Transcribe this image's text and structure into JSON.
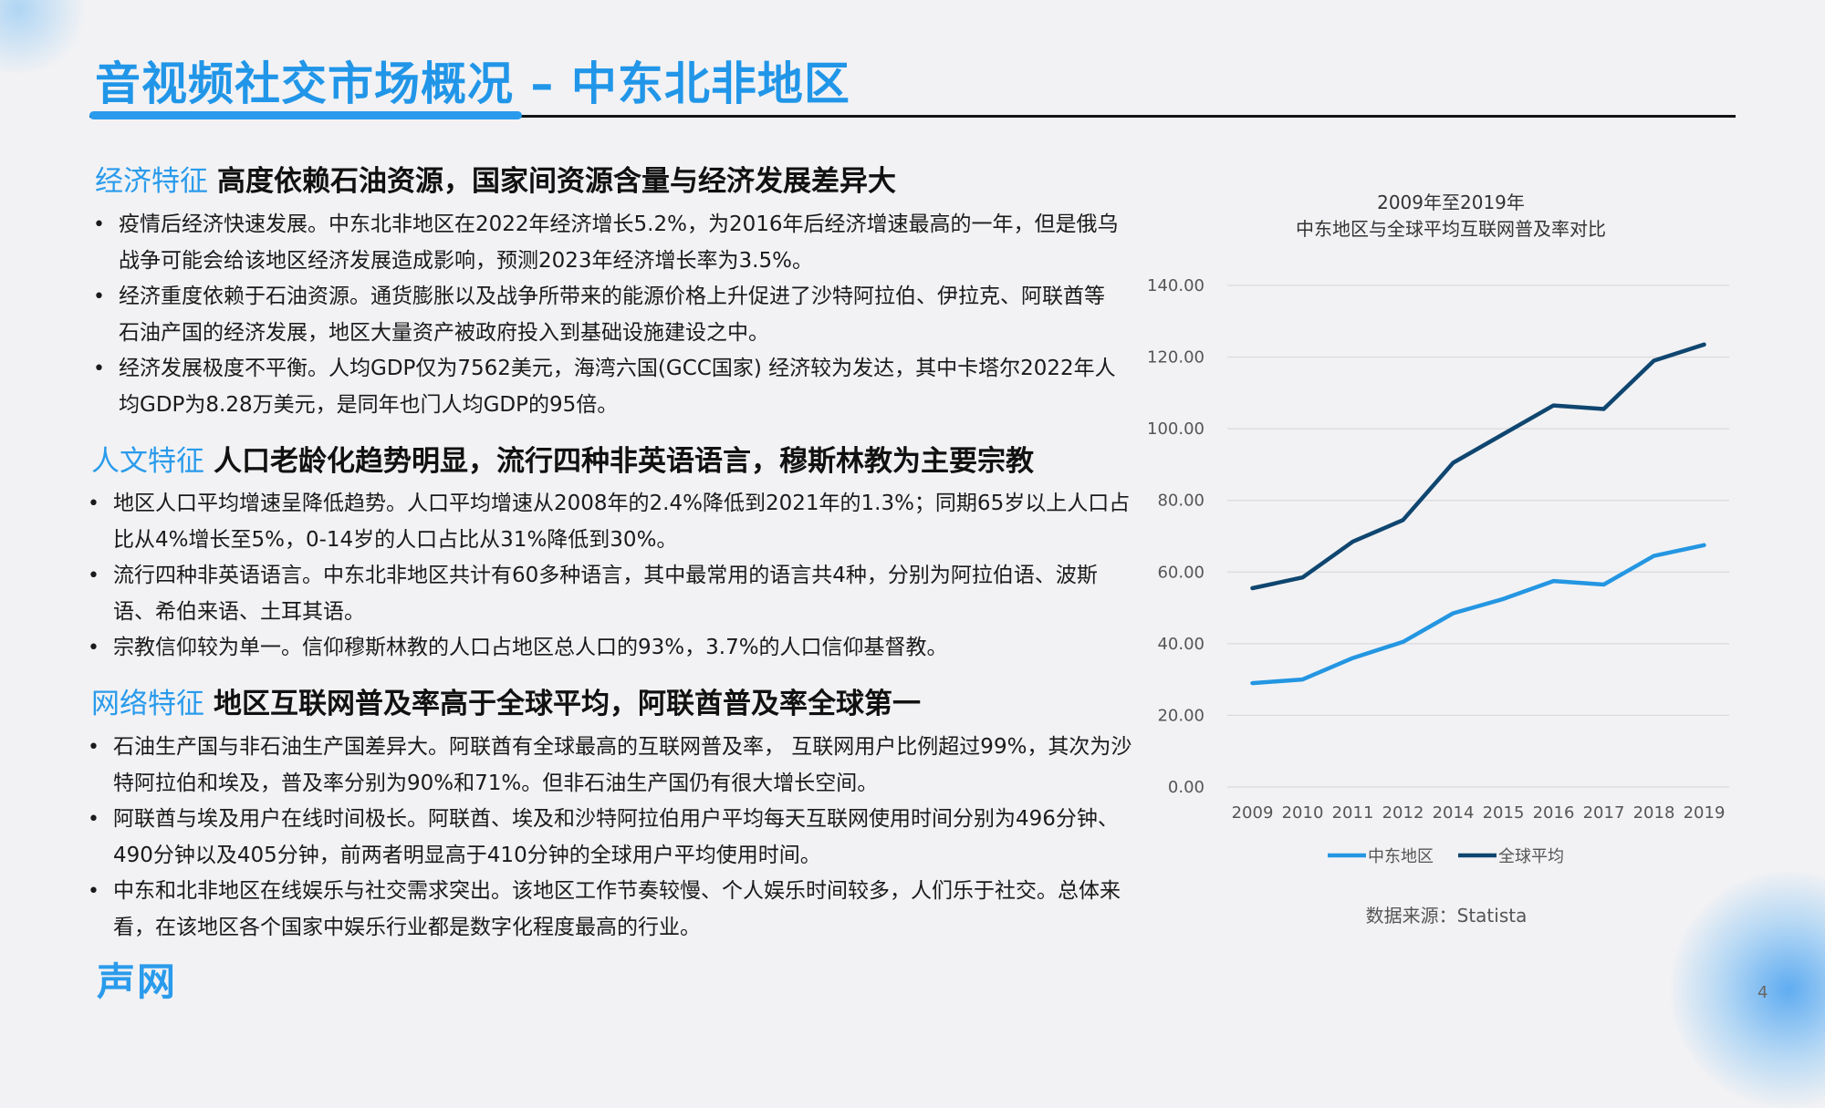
{
  "page": {
    "title": "音视频社交市场概况 – 中东北非地区",
    "logo": "声网",
    "page_number": "4"
  },
  "sections": [
    {
      "tag": "经济特征",
      "heading": "高度依赖石油资源，国家间资源含量与经济发展差异大",
      "bullets": [
        "疫情后经济快速发展。中东北非地区在2022年经济增长5.2%，为2016年后经济增速最高的一年，但是俄乌战争可能会给该地区经济发展造成影响，预测2023年经济增长率为3.5%。",
        "经济重度依赖于石油资源。通货膨胀以及战争所带来的能源价格上升促进了沙特阿拉伯、伊拉克、阿联酋等石油产国的经济发展，地区大量资产被政府投入到基础设施建设之中。",
        "经济发展极度不平衡。人均GDP仅为7562美元，海湾六国(GCC国家) 经济较为发达，其中卡塔尔2022年人均GDP为8.28万美元，是同年也门人均GDP的95倍。"
      ]
    },
    {
      "tag": "人文特征",
      "heading": "人口老龄化趋势明显，流行四种非英语语言，穆斯林教为主要宗教",
      "bullets": [
        "地区人口平均增速呈降低趋势。人口平均增速从2008年的2.4%降低到2021年的1.3%；同期65岁以上人口占比从4%增长至5%，0-14岁的人口占比从31%降低到30%。",
        "流行四种非英语语言。中东北非地区共计有60多种语言，其中最常用的语言共4种，分别为阿拉伯语、波斯语、希伯来语、土耳其语。",
        "宗教信仰较为单一。信仰穆斯林教的人口占地区总人口的93%，3.7%的人口信仰基督教。"
      ]
    },
    {
      "tag": "网络特征",
      "heading": "地区互联网普及率高于全球平均，阿联酋普及率全球第一",
      "bullets": [
        "石油生产国与非石油生产国差异大。阿联酋有全球最高的互联网普及率， 互联网用户比例超过99%，其次为沙特阿拉伯和埃及，普及率分别为90%和71%。但非石油生产国仍有很大增长空间。",
        "阿联酋与埃及用户在线时间极长。阿联酋、埃及和沙特阿拉伯用户平均每天互联网使用时间分别为496分钟、490分钟以及405分钟，前两者明显高于410分钟的全球用户平均使用时间。",
        "中东和北非地区在线娱乐与社交需求突出。该地区工作节奏较慢、个人娱乐时间较多，人们乐于社交。总体来看，在该地区各个国家中娱乐行业都是数字化程度最高的行业。"
      ]
    }
  ],
  "chart_title_line1": "2009年至2019年",
  "chart_title_line2": "中东地区与全球平均互联网普及率对比",
  "source": "数据来源：Statista",
  "chart_data": {
    "type": "line",
    "title": "2009年至2019年 中东地区与全球平均互联网普及率对比",
    "categories": [
      "2009",
      "2010",
      "2011",
      "2012",
      "2014",
      "2015",
      "2016",
      "2017",
      "2018",
      "2019"
    ],
    "series": [
      {
        "name": "中东地区",
        "color": "#2496e2",
        "values": [
          29,
          30,
          36,
          40.5,
          48.5,
          52.5,
          57.5,
          56.5,
          64.5,
          67.5
        ]
      },
      {
        "name": "全球平均",
        "color": "#0f4670",
        "values": [
          55.5,
          58.5,
          68.5,
          74.5,
          90.5,
          98.5,
          106.5,
          105.5,
          119,
          123.5
        ]
      }
    ],
    "yticks": [
      "0.00",
      "20.00",
      "40.00",
      "60.00",
      "80.00",
      "100.00",
      "120.00",
      "140.00"
    ],
    "ylim": [
      0,
      140
    ],
    "grid": true,
    "legend_position": "bottom"
  }
}
